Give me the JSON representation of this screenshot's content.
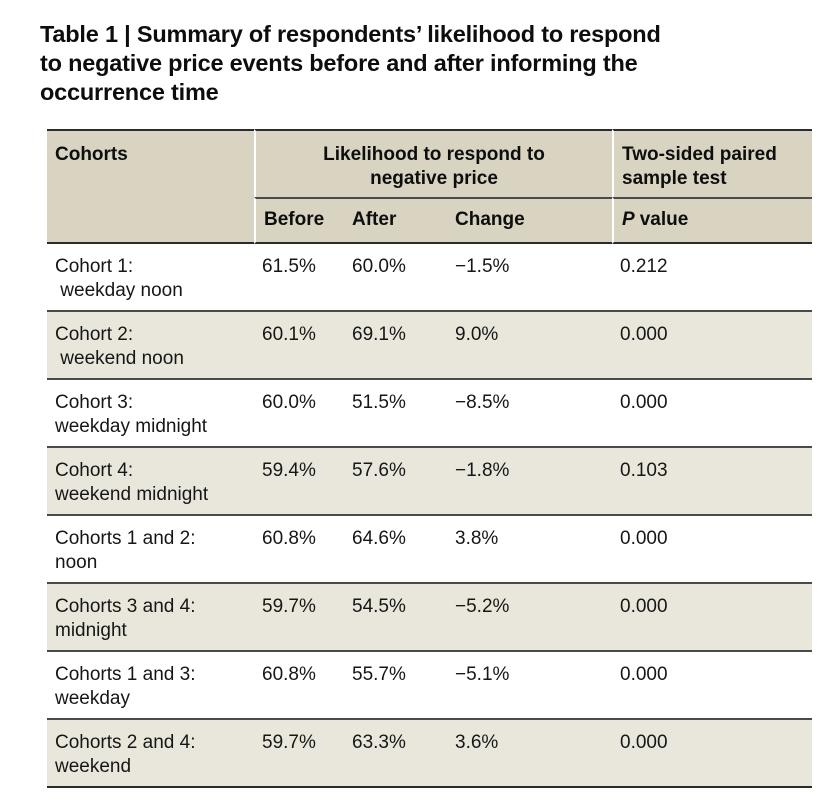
{
  "title": "Table 1 | Summary of respondents’ likelihood to respond\nto negative price events before and after informing the\noccurrence time",
  "colors": {
    "header_bg": "#d8d4c1",
    "stripe_bg": "#e9e7dc",
    "line_strong": "#2b2b2b",
    "line_mid": "#4a4a4a",
    "text": "#161616"
  },
  "table": {
    "col_headers": {
      "cohorts": "Cohorts",
      "group_likelihood": "Likelihood to respond to\nnegative price",
      "group_test": "Two-sided paired\nsample test",
      "before": "Before",
      "after": "After",
      "change": "Change",
      "p_symbol": "P",
      "p_label": "value"
    },
    "rows": [
      {
        "cohort": "Cohort 1:\n weekday noon",
        "before": "61.5%",
        "after": "60.0%",
        "change": "−1.5%",
        "p": "0.212"
      },
      {
        "cohort": "Cohort 2:\n weekend noon",
        "before": "60.1%",
        "after": "69.1%",
        "change": "9.0%",
        "p": "0.000"
      },
      {
        "cohort": "Cohort 3:\nweekday midnight",
        "before": "60.0%",
        "after": "51.5%",
        "change": "−8.5%",
        "p": "0.000"
      },
      {
        "cohort": "Cohort 4:\nweekend midnight",
        "before": "59.4%",
        "after": "57.6%",
        "change": "−1.8%",
        "p": "0.103"
      },
      {
        "cohort": "Cohorts 1 and 2:\nnoon",
        "before": "60.8%",
        "after": "64.6%",
        "change": "3.8%",
        "p": "0.000"
      },
      {
        "cohort": "Cohorts 3 and 4:\nmidnight",
        "before": "59.7%",
        "after": "54.5%",
        "change": "−5.2%",
        "p": "0.000"
      },
      {
        "cohort": "Cohorts 1 and 3:\nweekday",
        "before": "60.8%",
        "after": "55.7%",
        "change": "−5.1%",
        "p": "0.000"
      },
      {
        "cohort": "Cohorts 2 and 4:\nweekend",
        "before": "59.7%",
        "after": "63.3%",
        "change": "3.6%",
        "p": "0.000"
      }
    ]
  }
}
